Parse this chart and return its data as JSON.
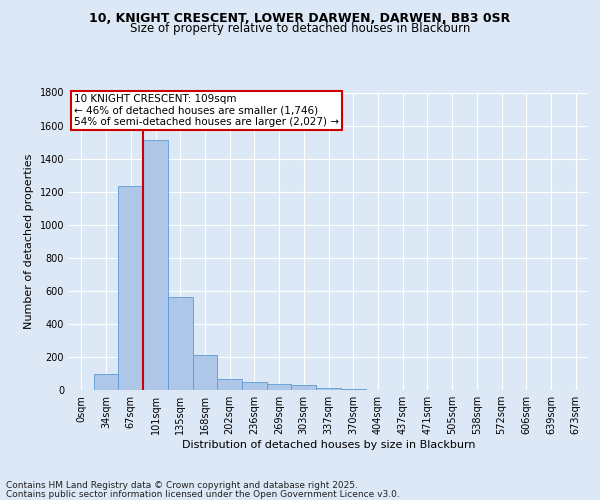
{
  "title_line1": "10, KNIGHT CRESCENT, LOWER DARWEN, DARWEN, BB3 0SR",
  "title_line2": "Size of property relative to detached houses in Blackburn",
  "xlabel": "Distribution of detached houses by size in Blackburn",
  "ylabel": "Number of detached properties",
  "bar_labels": [
    "0sqm",
    "34sqm",
    "67sqm",
    "101sqm",
    "135sqm",
    "168sqm",
    "202sqm",
    "236sqm",
    "269sqm",
    "303sqm",
    "337sqm",
    "370sqm",
    "404sqm",
    "437sqm",
    "471sqm",
    "505sqm",
    "538sqm",
    "572sqm",
    "606sqm",
    "639sqm",
    "673sqm"
  ],
  "bar_values": [
    0,
    95,
    1235,
    1510,
    560,
    210,
    65,
    48,
    38,
    28,
    12,
    5,
    3,
    2,
    1,
    0,
    0,
    0,
    0,
    0,
    0
  ],
  "bar_color": "#aec6e8",
  "bar_edge_color": "#5b9bd5",
  "ylim": [
    0,
    1800
  ],
  "yticks": [
    0,
    200,
    400,
    600,
    800,
    1000,
    1200,
    1400,
    1600,
    1800
  ],
  "vline_index": 3,
  "vline_color": "#cc0000",
  "annotation_title": "10 KNIGHT CRESCENT: 109sqm",
  "annotation_line2": "← 46% of detached houses are smaller (1,746)",
  "annotation_line3": "54% of semi-detached houses are larger (2,027) →",
  "annotation_box_color": "#ffffff",
  "annotation_box_edge": "#cc0000",
  "footnote_line1": "Contains HM Land Registry data © Crown copyright and database right 2025.",
  "footnote_line2": "Contains public sector information licensed under the Open Government Licence v3.0.",
  "background_color": "#dce8f5",
  "plot_bg_color": "#dce8f5",
  "grid_color": "#ffffff",
  "title_fontsize": 9,
  "subtitle_fontsize": 8.5,
  "axis_label_fontsize": 8,
  "tick_fontsize": 7,
  "annotation_fontsize": 7.5,
  "footnote_fontsize": 6.5
}
